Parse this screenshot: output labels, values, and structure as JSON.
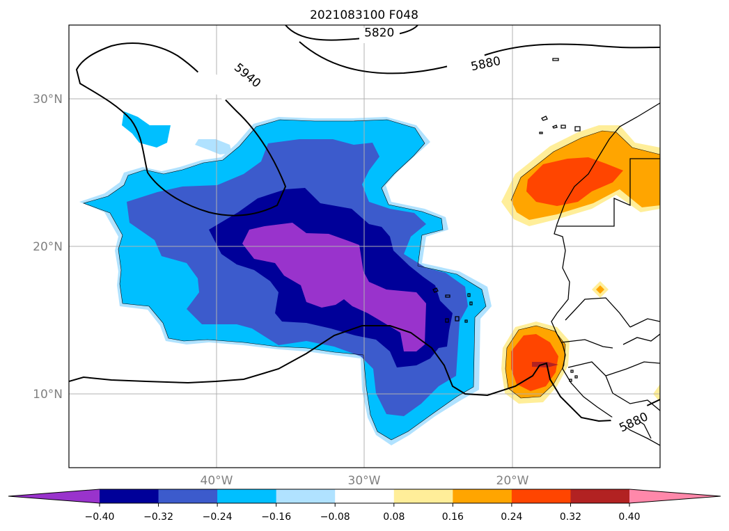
{
  "title": "2021083100 F048",
  "map": {
    "lon_range": [
      -50,
      -10
    ],
    "lat_range": [
      5,
      35
    ],
    "gridlines": true,
    "lat_ticks": [
      {
        "value": 30,
        "label": "30°N"
      },
      {
        "value": 20,
        "label": "20°N"
      },
      {
        "value": 10,
        "label": "10°N"
      }
    ],
    "lon_ticks": [
      {
        "value": -40,
        "label": "40°W"
      },
      {
        "value": -30,
        "label": "30°W"
      },
      {
        "value": -20,
        "label": "20°W"
      }
    ],
    "contour_labels": [
      {
        "text": "5820",
        "lon": -29,
        "lat": 34.5,
        "rotate": 0
      },
      {
        "text": "5940",
        "lon": -37.9,
        "lat": 31.6,
        "rotate": 40
      },
      {
        "text": "5880",
        "lon": -21.8,
        "lat": 32.4,
        "rotate": -12
      },
      {
        "text": "5880",
        "lon": -11.8,
        "lat": 8.1,
        "rotate": -25
      }
    ]
  },
  "colorbar": {
    "colors": [
      "#9933cc",
      "#000099",
      "#3c5bcc",
      "#00bfff",
      "#b0e2ff",
      "#ffffff",
      "#ffee99",
      "#ffa500",
      "#ff4500",
      "#b22222",
      "#ff88aa"
    ],
    "extend": "both",
    "tick_labels": [
      "−0.40",
      "−0.32",
      "−0.24",
      "−0.16",
      "−0.08",
      "0.08",
      "0.16",
      "0.24",
      "0.32",
      "0.40"
    ]
  }
}
